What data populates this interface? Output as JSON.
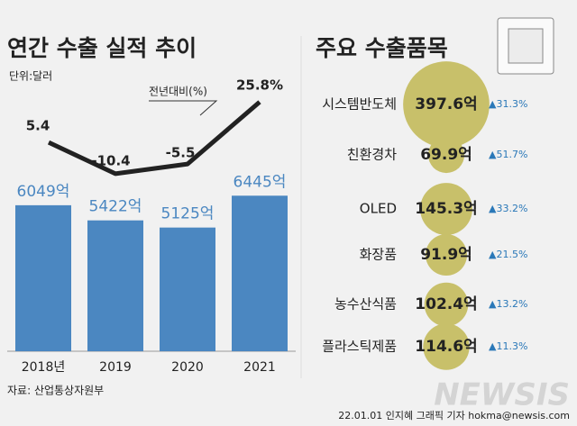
{
  "chart_data": [
    {
      "type": "bar",
      "title": "연간 수출 실적 추이",
      "subtitle": "단위:달러",
      "categories": [
        "2018년",
        "2019",
        "2020",
        "2021"
      ],
      "series": [
        {
          "name": "수출 실적",
          "color": "#4b87c1",
          "values": [
            6049,
            5422,
            5125,
            6445
          ],
          "value_labels": [
            "6049억",
            "5422억",
            "5125억",
            "6445억"
          ]
        },
        {
          "name": "전년대비(%)",
          "type": "line",
          "color": "#222222",
          "values": [
            5.4,
            -10.4,
            -5.5,
            25.8
          ],
          "value_labels": [
            "5.4",
            "-10.4",
            "-5.5",
            "25.8%"
          ]
        }
      ]
    },
    {
      "type": "bubble",
      "title": "주요 수출품목",
      "color": "#c8c06a",
      "categories": [
        "시스템반도체",
        "친환경차",
        "OLED",
        "화장품",
        "농수산식품",
        "플라스틱제품"
      ],
      "values": [
        397.6,
        69.9,
        145.3,
        91.9,
        102.4,
        114.6
      ],
      "value_labels": [
        "397.6억",
        "69.9억",
        "145.3억",
        "91.9억",
        "102.4억",
        "114.6억"
      ],
      "growth": [
        31.3,
        51.7,
        33.2,
        21.5,
        13.2,
        11.3
      ],
      "growth_labels": [
        "▲31.3%",
        "▲51.7%",
        "▲33.2%",
        "▲21.5%",
        "▲13.2%",
        "▲11.3%"
      ],
      "growth_color": "#2a78b8"
    }
  ],
  "source": "자료: 산업통상자원부",
  "credit": "22.01.01 인지혜 그래픽 기자 hokma@newsis.com",
  "watermark": "NEWSIS"
}
